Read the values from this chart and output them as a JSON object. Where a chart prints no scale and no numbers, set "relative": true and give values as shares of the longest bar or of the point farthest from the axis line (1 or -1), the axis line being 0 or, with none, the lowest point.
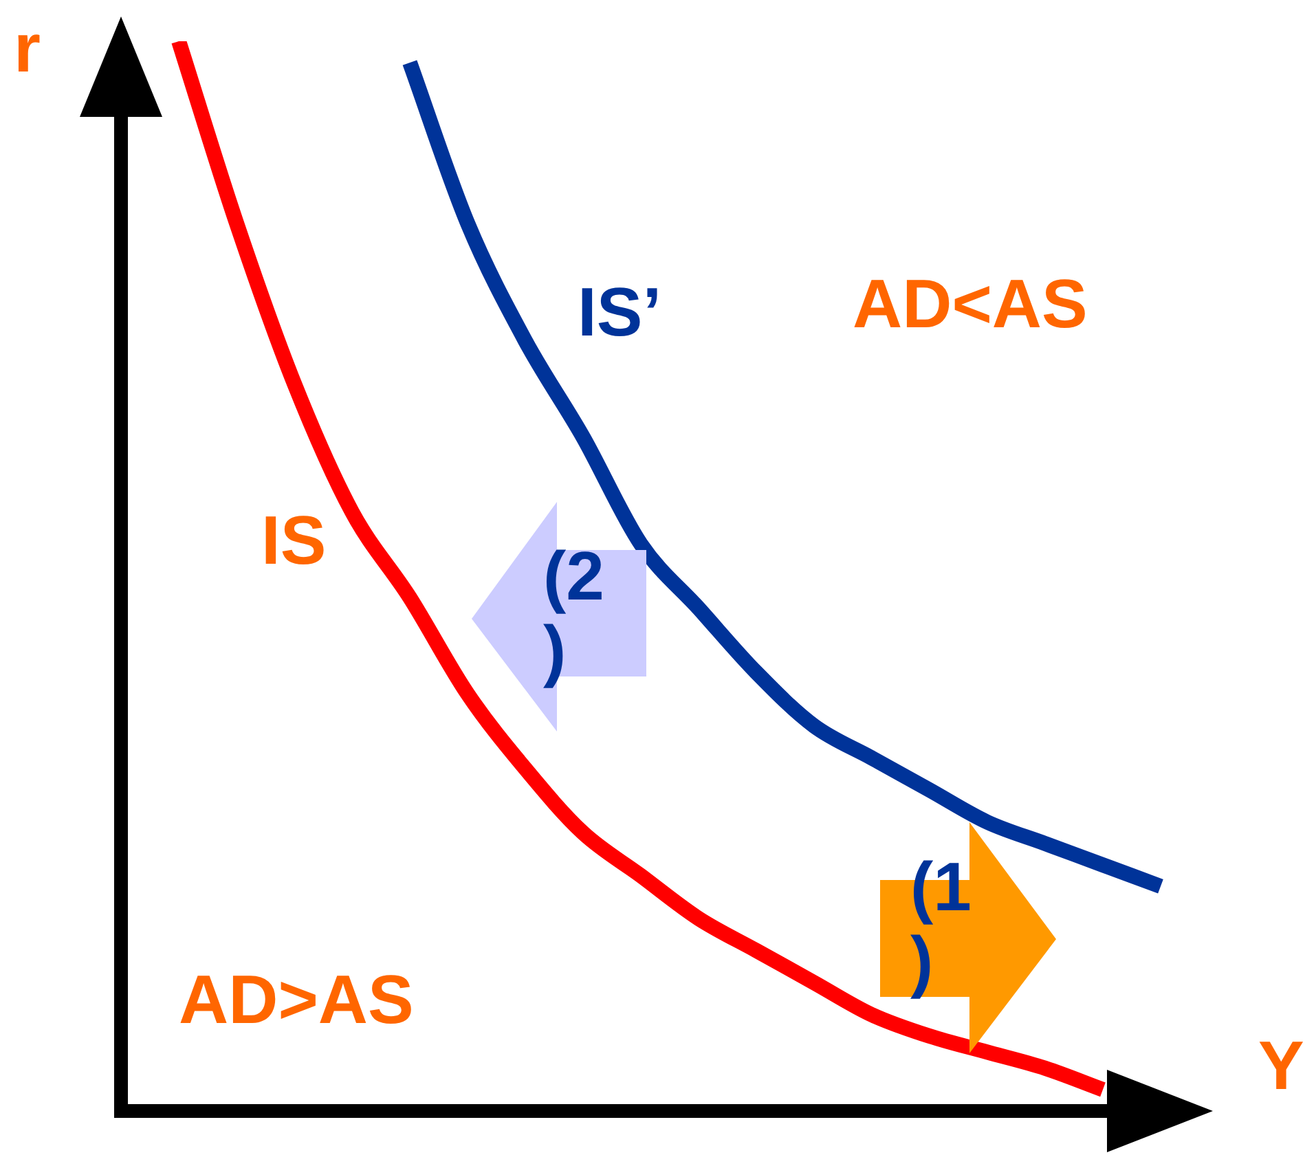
{
  "chart_data": {
    "type": "line",
    "xlabel": "Y",
    "ylabel": "r",
    "relative": true,
    "marker": "none",
    "legend": false,
    "categories": [
      null,
      null,
      null,
      null,
      null,
      null,
      null,
      null,
      null,
      null,
      null,
      null,
      null,
      null,
      null,
      null,
      null,
      null,
      null,
      null
    ],
    "series": [
      {
        "name": "IS",
        "color": "#ff0000",
        "values": [
          null,
          1,
          0.83,
          0.68,
          0.56,
          0.48,
          0.39,
          0.32,
          0.26,
          0.22,
          0.18,
          0.15,
          0.12,
          0.09,
          0.07,
          0.055,
          0.04,
          0.02,
          null,
          null
        ]
      },
      {
        "name": "IS’",
        "color": "#003399",
        "values": [
          null,
          null,
          null,
          null,
          null,
          0.98,
          0.83,
          0.72,
          0.63,
          0.53,
          0.47,
          0.41,
          0.36,
          0.33,
          0.3,
          0.27,
          0.25,
          0.23,
          0.21,
          null
        ]
      }
    ],
    "annotations": [
      "AD<AS",
      "AD>AS",
      "(2)",
      "(1)"
    ]
  }
}
